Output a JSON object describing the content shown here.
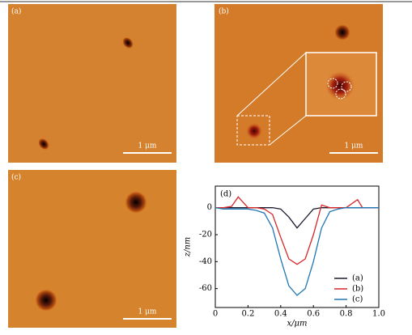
{
  "panels": [
    {
      "label": "(a)",
      "scale_bar": "1 μm"
    },
    {
      "label": "(b)",
      "scale_bar": "1 μm"
    },
    {
      "label": "(c)",
      "scale_bar": "1 μm"
    }
  ],
  "chart_data": {
    "type": "line",
    "label": "(d)",
    "x_label": "x/μm",
    "y_label": "z/nm",
    "x": [
      0,
      0.05,
      0.1,
      0.14,
      0.2,
      0.25,
      0.3,
      0.35,
      0.4,
      0.45,
      0.5,
      0.55,
      0.6,
      0.65,
      0.7,
      0.75,
      0.8,
      0.87,
      0.9,
      0.95,
      1.0
    ],
    "series": [
      {
        "name": "(a)",
        "color": "#1a1a2e",
        "values": [
          0,
          0,
          0,
          0,
          0,
          0,
          0,
          0,
          -1,
          -7,
          -15,
          -8,
          -1,
          0,
          0,
          0,
          0,
          0,
          0,
          0,
          0
        ]
      },
      {
        "name": "(b)",
        "color": "#d62728",
        "values": [
          0,
          0,
          1,
          8,
          0,
          0,
          -1,
          -5,
          -22,
          -38,
          -42,
          -38,
          -20,
          2,
          0,
          0,
          0,
          6,
          0,
          0,
          0
        ]
      },
      {
        "name": "(c)",
        "color": "#1f77b4",
        "values": [
          0,
          -1,
          -1,
          -1,
          -1,
          -2,
          -4,
          -15,
          -38,
          -58,
          -65,
          -60,
          -40,
          -15,
          -3,
          -1,
          0,
          0,
          0,
          0,
          0
        ]
      }
    ],
    "xlim": [
      0,
      1.0
    ],
    "xticks": [
      0,
      0.2,
      0.4,
      0.6,
      0.8,
      {
        "value": 1.0,
        "label": "1.0"
      }
    ],
    "ylim": [
      -74,
      16
    ],
    "yticks": [
      0,
      -20,
      -40,
      -60
    ],
    "legend": "lower-right"
  }
}
